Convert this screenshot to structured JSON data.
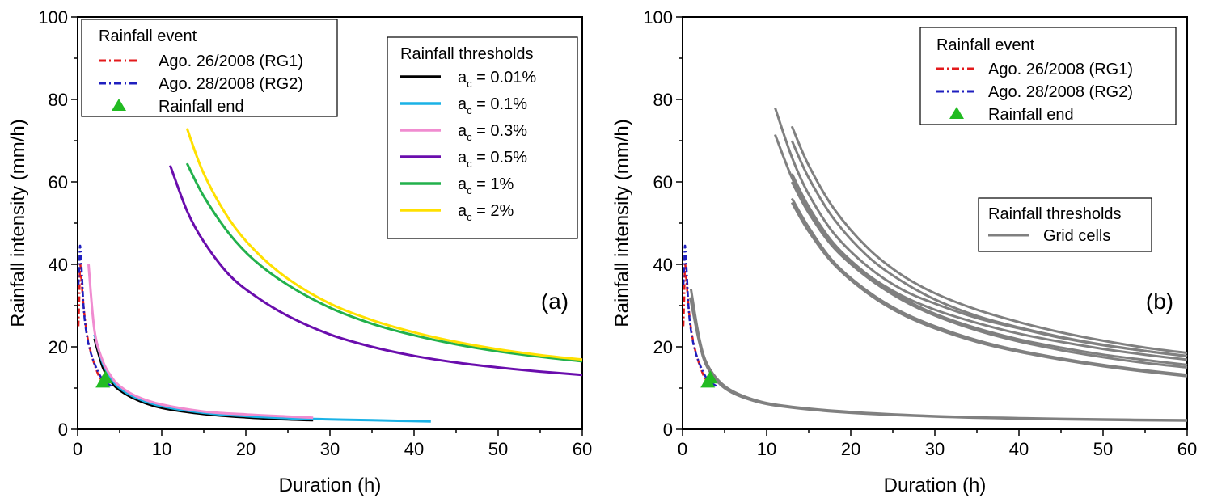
{
  "chart_data": [
    {
      "type": "line",
      "panel_label": "(a)",
      "xlabel": "Duration (h)",
      "ylabel": "Rainfall intensity (mm/h)",
      "xlim": [
        0,
        60
      ],
      "ylim": [
        0,
        100
      ],
      "x_ticks": [
        "0",
        "10",
        "20",
        "30",
        "40",
        "50",
        "60"
      ],
      "y_ticks": [
        "0",
        "20",
        "40",
        "60",
        "80",
        "100"
      ],
      "grid": false,
      "event_legend": {
        "title": "Rainfall event",
        "items": [
          {
            "label": "Ago. 26/2008 (RG1)",
            "color": "#e31a1c",
            "style": "dashdot"
          },
          {
            "label": "Ago. 28/2008 (RG2)",
            "color": "#1f1fbf",
            "style": "dashdot"
          },
          {
            "label": "Rainfall end",
            "color": "#22bb22",
            "style": "triangle"
          }
        ]
      },
      "threshold_legend": {
        "title": "Rainfall thresholds",
        "items": [
          {
            "label_main": "a",
            "label_sub": "c",
            "label_rest": " = 0.01%",
            "color": "#000000"
          },
          {
            "label_main": "a",
            "label_sub": "c",
            "label_rest": " = 0.1%",
            "color": "#1ab2e6"
          },
          {
            "label_main": "a",
            "label_sub": "c",
            "label_rest": " = 0.3%",
            "color": "#f08cd0"
          },
          {
            "label_main": "a",
            "label_sub": "c",
            "label_rest": " = 0.5%",
            "color": "#6a0dad"
          },
          {
            "label_main": "a",
            "label_sub": "c",
            "label_rest": " = 1%",
            "color": "#22b14c"
          },
          {
            "label_main": "a",
            "label_sub": "c",
            "label_rest": " = 2%",
            "color": "#ffe000"
          }
        ]
      },
      "series": [
        {
          "name": "ac = 0.01%",
          "color": "#000000",
          "x": [
            2,
            3,
            4,
            5,
            7,
            10,
            15,
            20,
            25,
            28
          ],
          "y": [
            22,
            15,
            11.5,
            9.5,
            7.2,
            5.2,
            3.7,
            2.9,
            2.4,
            2.2
          ]
        },
        {
          "name": "ac = 0.1%",
          "color": "#1ab2e6",
          "x": [
            2,
            3,
            4,
            5,
            7,
            10,
            15,
            20,
            25,
            30,
            35,
            42
          ],
          "y": [
            23,
            16,
            12.3,
            10,
            7.6,
            5.6,
            4,
            3.2,
            2.7,
            2.4,
            2.2,
            1.9
          ]
        },
        {
          "name": "ac = 0.3%",
          "color": "#f08cd0",
          "x": [
            1.3,
            2,
            3,
            4,
            5,
            7,
            10,
            15,
            20,
            25,
            28
          ],
          "y": [
            40,
            24,
            16.5,
            12.8,
            10.5,
            8,
            6,
            4.3,
            3.6,
            3.1,
            2.8
          ]
        },
        {
          "name": "ac = 0.5%",
          "color": "#6a0dad",
          "x": [
            11,
            13,
            15,
            18,
            21,
            25,
            30,
            35,
            40,
            45,
            50,
            55,
            60
          ],
          "y": [
            64,
            53,
            45.5,
            37.5,
            32.5,
            27.5,
            23,
            20,
            17.8,
            16.2,
            15,
            14,
            13.2
          ]
        },
        {
          "name": "ac = 1%",
          "color": "#22b14c",
          "x": [
            13,
            15,
            18,
            21,
            25,
            30,
            35,
            40,
            45,
            50,
            55,
            60
          ],
          "y": [
            64.5,
            56.5,
            47.5,
            41,
            35,
            29.5,
            25.6,
            22.8,
            20.6,
            18.9,
            17.6,
            16.5
          ]
        },
        {
          "name": "ac = 2%",
          "color": "#ffe000",
          "x": [
            13,
            15,
            18,
            21,
            25,
            30,
            35,
            40,
            45,
            50,
            55,
            60
          ],
          "y": [
            73,
            62,
            51,
            43.5,
            36.5,
            30.5,
            26.5,
            23.5,
            21.2,
            19.4,
            18,
            16.9
          ]
        }
      ],
      "events": [
        {
          "name": "Ago. 26/2008 (RG1)",
          "color": "#e31a1c",
          "x": [
            0.1,
            0.2,
            0.3,
            0.5,
            0.8,
            1.2,
            1.8,
            2.5,
            3.0
          ],
          "y": [
            25,
            32,
            40,
            35,
            28,
            22,
            17,
            13,
            11
          ]
        },
        {
          "name": "Ago. 28/2008 (RG2)",
          "color": "#1f1fbf",
          "x": [
            0.1,
            0.2,
            0.3,
            0.5,
            0.7,
            1.0,
            1.5,
            2.2,
            3.0,
            4.0
          ],
          "y": [
            35,
            40,
            44.5,
            38,
            30,
            24,
            19,
            15,
            12,
            10.5
          ]
        }
      ],
      "rainfall_end": [
        {
          "x": 3.0,
          "y": 11.5
        },
        {
          "x": 3.3,
          "y": 12.5
        }
      ]
    },
    {
      "type": "line",
      "panel_label": "(b)",
      "xlabel": "Duration (h)",
      "ylabel": "Rainfall intensity (mm/h)",
      "xlim": [
        0,
        60
      ],
      "ylim": [
        0,
        100
      ],
      "x_ticks": [
        "0",
        "10",
        "20",
        "30",
        "40",
        "50",
        "60"
      ],
      "y_ticks": [
        "0",
        "20",
        "40",
        "60",
        "80",
        "100"
      ],
      "grid": false,
      "event_legend": {
        "title": "Rainfall event",
        "items": [
          {
            "label": "Ago. 26/2008 (RG1)",
            "color": "#e31a1c",
            "style": "dashdot"
          },
          {
            "label": "Ago. 28/2008 (RG2)",
            "color": "#1f1fbf",
            "style": "dashdot"
          },
          {
            "label": "Rainfall end",
            "color": "#22bb22",
            "style": "triangle"
          }
        ]
      },
      "threshold_legend": {
        "title": "Rainfall thresholds",
        "items": [
          {
            "label": "Grid cells",
            "color": "#808080"
          }
        ]
      },
      "grid_cells": {
        "color": "#808080",
        "curves": [
          {
            "x": [
              1,
              2,
              3,
              5,
              8,
              12,
              20,
              30,
              40,
              50,
              60
            ],
            "y": [
              34,
              22,
              15.5,
              10.5,
              7.5,
              5.7,
              4.2,
              3.2,
              2.7,
              2.4,
              2.2
            ]
          },
          {
            "x": [
              0.9,
              2,
              3,
              5,
              8,
              12,
              20,
              30,
              40,
              50,
              60
            ],
            "y": [
              32,
              21,
              14.8,
              10,
              7.2,
              5.5,
              4.0,
              3.1,
              2.6,
              2.3,
              2.1
            ]
          },
          {
            "x": [
              11,
              13,
              15,
              18,
              22,
              26,
              30,
              35,
              40,
              45,
              50,
              55,
              60
            ],
            "y": [
              78,
              66,
              57,
              47.5,
              39.5,
              34,
              30.5,
              27,
              24.5,
              22.2,
              20.4,
              19,
              17.8
            ]
          },
          {
            "x": [
              11,
              13,
              15,
              18,
              22,
              26,
              30,
              35,
              40,
              45,
              50,
              55,
              60
            ],
            "y": [
              71.5,
              61,
              53,
              44.5,
              37.5,
              32.5,
              29,
              25.8,
              23.2,
              21.2,
              19.5,
              18.1,
              16.9
            ]
          },
          {
            "x": [
              13,
              15,
              18,
              22,
              26,
              30,
              35,
              40,
              45,
              50,
              55,
              60
            ],
            "y": [
              73.5,
              64,
              53.5,
              44,
              37.5,
              33,
              29,
              26,
              23.5,
              21.5,
              19.8,
              18.5
            ]
          },
          {
            "x": [
              13,
              15,
              18,
              22,
              26,
              30,
              35,
              40,
              45,
              50,
              55,
              60
            ],
            "y": [
              70,
              61,
              51,
              42,
              36,
              31.5,
              27.5,
              24.7,
              22.4,
              20.5,
              19,
              17.7
            ]
          },
          {
            "x": [
              13,
              15,
              18,
              22,
              26,
              30,
              35,
              40,
              45,
              50,
              55,
              60
            ],
            "y": [
              62,
              54,
              45,
              37.5,
              32,
              28,
              24.5,
              21.8,
              19.8,
              18.1,
              16.8,
              15.6
            ]
          },
          {
            "x": [
              13,
              15,
              18,
              22,
              26,
              30,
              35,
              40,
              45,
              50,
              55,
              60
            ],
            "y": [
              60,
              52.5,
              44,
              36.8,
              31.5,
              27.6,
              24,
              21.3,
              19.2,
              17.5,
              16.1,
              15
            ]
          },
          {
            "x": [
              13,
              15,
              18,
              22,
              26,
              30,
              35,
              40,
              45,
              50,
              55,
              60
            ],
            "y": [
              56,
              49,
              40.5,
              33.5,
              28.5,
              25,
              21.6,
              19.1,
              17.2,
              15.6,
              14.3,
              13.2
            ]
          },
          {
            "x": [
              13,
              15,
              18,
              22,
              26,
              30,
              35,
              40,
              45,
              50,
              55,
              60
            ],
            "y": [
              55,
              48,
              40,
              33,
              28,
              24.5,
              21.2,
              18.8,
              16.9,
              15.3,
              14,
              12.9
            ]
          }
        ]
      },
      "events": [
        {
          "name": "Ago. 26/2008 (RG1)",
          "color": "#e31a1c",
          "x": [
            0.1,
            0.2,
            0.3,
            0.5,
            0.8,
            1.2,
            1.8,
            2.5,
            3.0
          ],
          "y": [
            25,
            32,
            40,
            35,
            28,
            22,
            17,
            13,
            11
          ]
        },
        {
          "name": "Ago. 28/2008 (RG2)",
          "color": "#1f1fbf",
          "x": [
            0.1,
            0.2,
            0.3,
            0.5,
            0.7,
            1.0,
            1.5,
            2.2,
            3.0,
            4.0
          ],
          "y": [
            35,
            40,
            44.5,
            38,
            30,
            24,
            19,
            15,
            12,
            10.5
          ]
        }
      ],
      "rainfall_end": [
        {
          "x": 3.0,
          "y": 11.5
        },
        {
          "x": 3.3,
          "y": 12.5
        }
      ]
    }
  ]
}
